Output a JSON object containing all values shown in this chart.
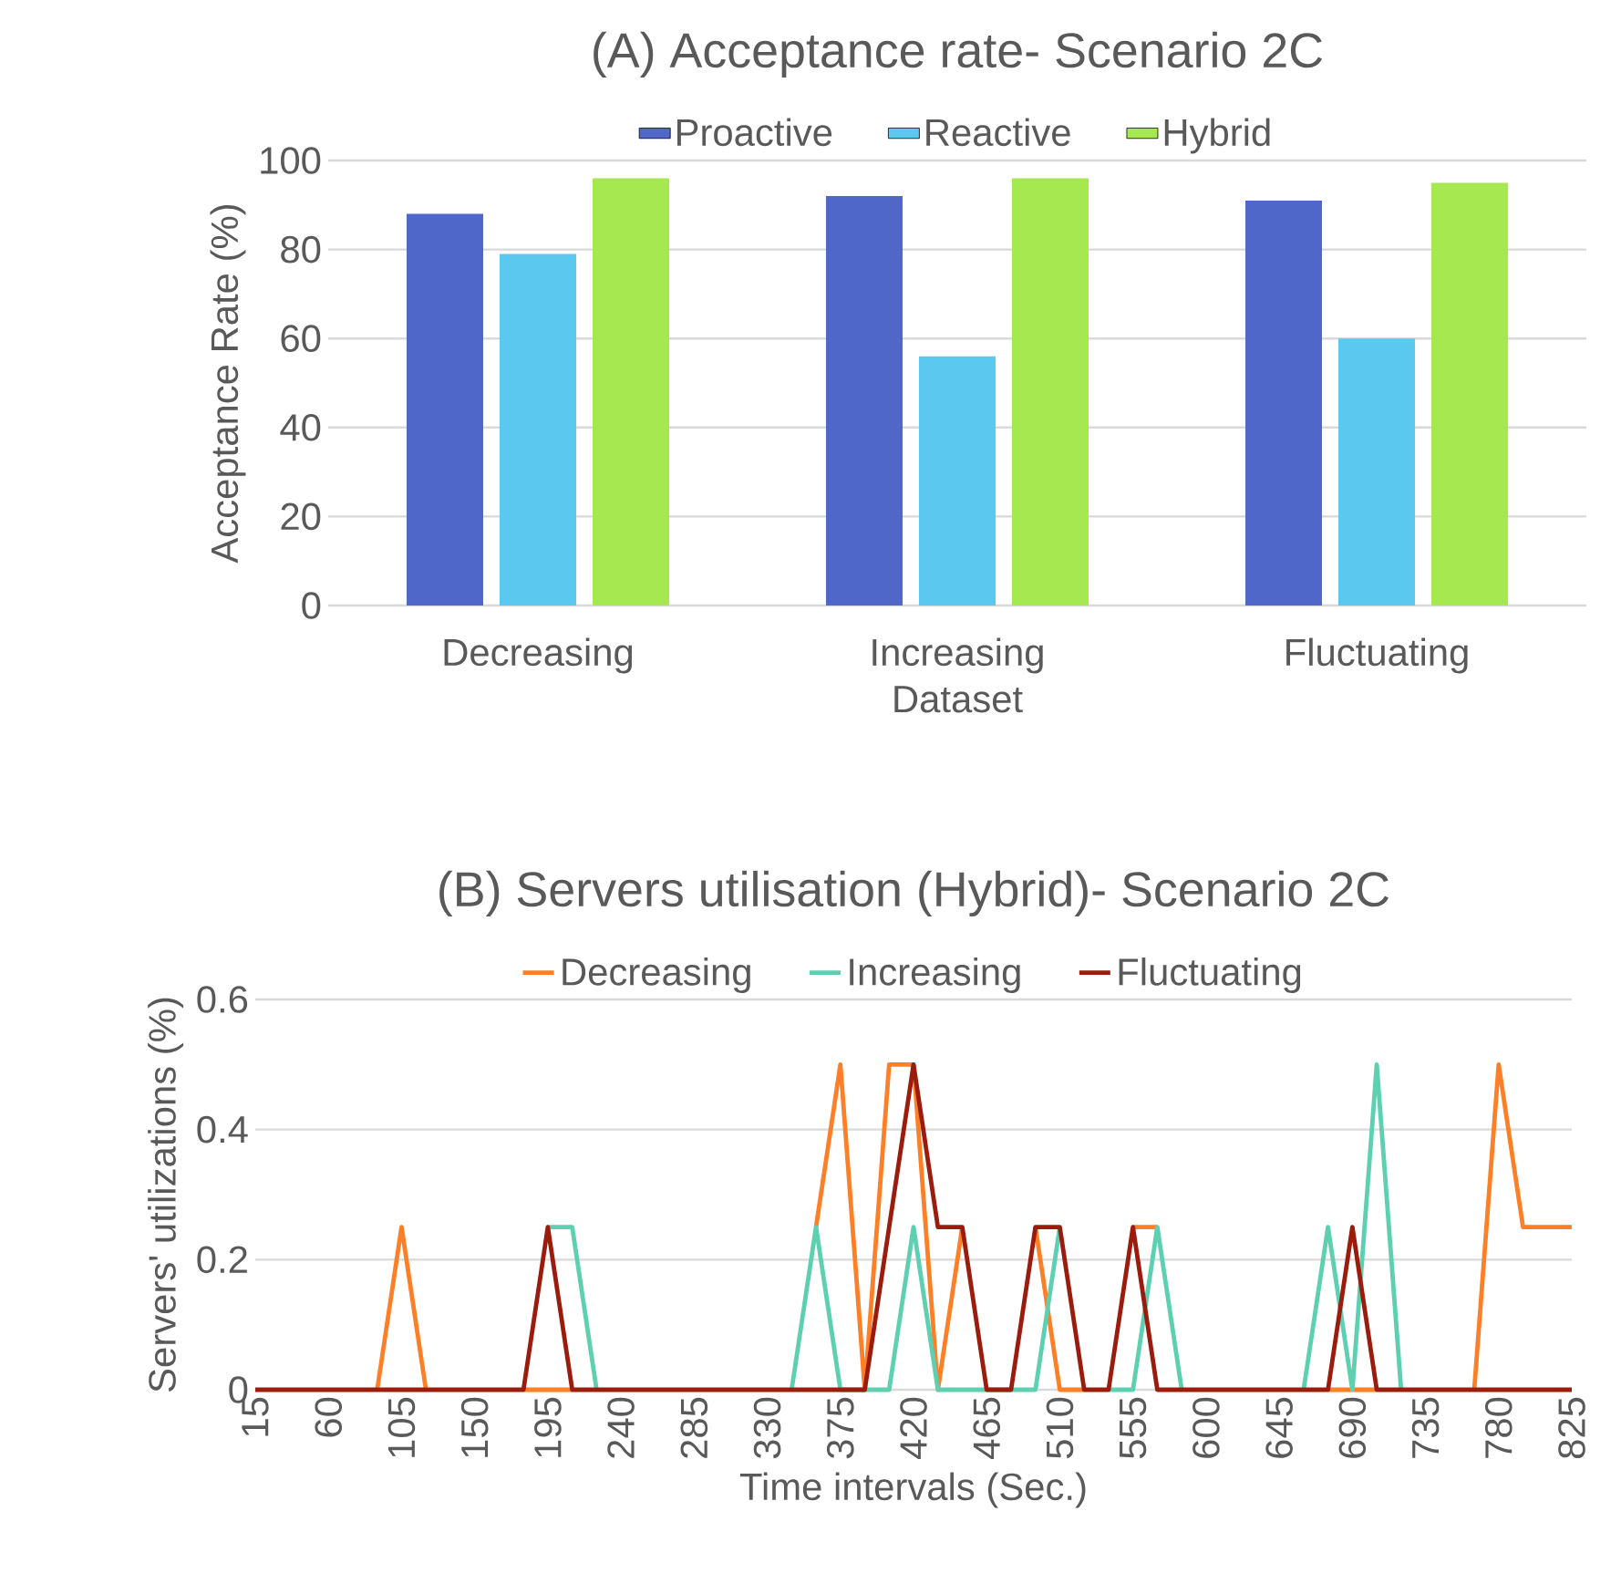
{
  "chart_data": [
    {
      "type": "bar",
      "title": "(A) Acceptance rate- Scenario 2C",
      "xlabel": "Dataset",
      "ylabel": "Acceptance Rate (%)",
      "categories": [
        "Decreasing",
        "Increasing",
        "Fluctuating"
      ],
      "series": [
        {
          "name": "Proactive",
          "color": "#4f67c9",
          "values": [
            88,
            92,
            91
          ]
        },
        {
          "name": "Reactive",
          "color": "#5bc8f0",
          "values": [
            79,
            56,
            60
          ]
        },
        {
          "name": "Hybrid",
          "color": "#a6e84f",
          "values": [
            96,
            96,
            95
          ]
        }
      ],
      "ylim": [
        0,
        100
      ],
      "yticks": [
        0,
        20,
        40,
        60,
        80,
        100
      ],
      "grid": "y",
      "legend": "top"
    },
    {
      "type": "line",
      "title": "(B) Servers utilisation (Hybrid)- Scenario 2C",
      "xlabel": "Time intervals (Sec.)",
      "ylabel": "Servers' utilizations (%)",
      "x": [
        15,
        30,
        45,
        60,
        75,
        90,
        105,
        120,
        135,
        150,
        165,
        180,
        195,
        210,
        225,
        240,
        255,
        270,
        285,
        300,
        315,
        330,
        345,
        360,
        375,
        390,
        405,
        420,
        435,
        450,
        465,
        480,
        495,
        510,
        525,
        540,
        555,
        570,
        585,
        600,
        615,
        630,
        645,
        660,
        675,
        690,
        705,
        720,
        735,
        750,
        765,
        780,
        795,
        810,
        825
      ],
      "series": [
        {
          "name": "Decreasing",
          "color": "#ff7f27",
          "values": [
            null,
            null,
            null,
            null,
            null,
            0,
            0.25,
            0,
            null,
            null,
            null,
            0,
            0,
            0,
            null,
            null,
            null,
            null,
            null,
            null,
            null,
            null,
            null,
            0.25,
            0.5,
            0,
            0.5,
            0.5,
            0,
            0.25,
            null,
            null,
            0.25,
            0,
            0,
            null,
            0.25,
            0.25,
            null,
            null,
            null,
            null,
            null,
            null,
            0,
            0,
            0,
            null,
            null,
            null,
            0,
            0.5,
            0.25,
            0.25,
            0.25
          ]
        },
        {
          "name": "Increasing",
          "color": "#5cd0b0",
          "values": [
            null,
            null,
            null,
            null,
            null,
            null,
            null,
            null,
            null,
            null,
            null,
            null,
            0.25,
            0.25,
            0,
            null,
            null,
            null,
            null,
            null,
            null,
            null,
            0,
            0.25,
            0,
            0,
            0,
            0.25,
            0,
            0,
            0,
            0,
            0,
            0.25,
            null,
            0,
            0,
            0.25,
            0,
            null,
            null,
            null,
            null,
            0,
            0.25,
            0,
            0.5,
            0,
            null,
            null,
            null,
            null,
            null,
            null,
            null
          ]
        },
        {
          "name": "Fluctuating",
          "color": "#9b1c0c",
          "values": [
            0,
            0,
            0,
            0,
            0,
            0,
            0,
            0,
            0,
            0,
            0,
            0,
            0.25,
            0,
            0,
            0,
            0,
            0,
            0,
            0,
            0,
            0,
            0,
            0,
            0,
            0,
            0.25,
            0.5,
            0.25,
            0.25,
            0,
            0,
            0.25,
            0.25,
            0,
            0,
            0.25,
            0,
            0,
            0,
            0,
            0,
            0,
            0,
            0,
            0.25,
            0,
            0,
            0,
            0,
            0,
            0,
            0,
            0,
            0
          ]
        }
      ],
      "xlim": [
        15,
        825
      ],
      "xticks": [
        15,
        60,
        105,
        150,
        195,
        240,
        285,
        330,
        375,
        420,
        465,
        510,
        555,
        600,
        645,
        690,
        735,
        780,
        825
      ],
      "ylim": [
        0,
        0.6
      ],
      "yticks": [
        0,
        0.2,
        0.4,
        0.6
      ],
      "grid": "y",
      "legend": "top"
    }
  ]
}
